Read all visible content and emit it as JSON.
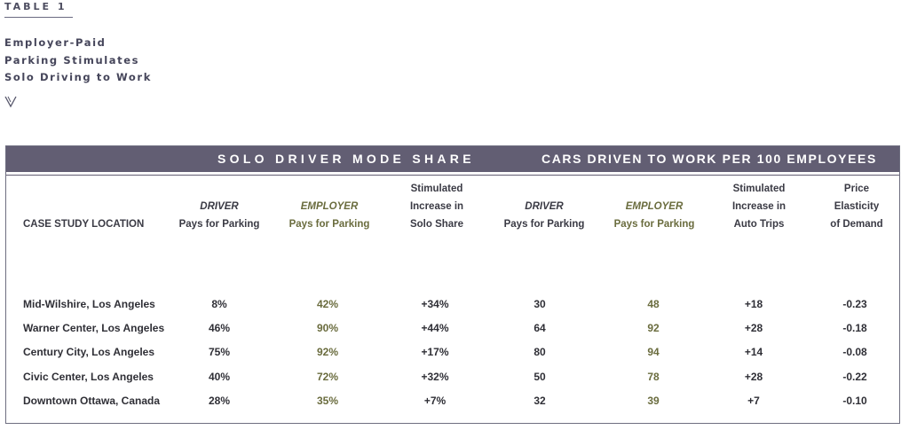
{
  "table_label": "TABLE 1",
  "subtitle": [
    "Employer-Paid",
    "Parking Stimulates",
    "Solo Driving to Work"
  ],
  "icons": {
    "arrow": "chevron-down-arrow-icon"
  },
  "colors": {
    "band": "#625e73",
    "employer_text": "#6a6c3e",
    "text": "#2f2f36"
  },
  "group_headers": {
    "solo": "SOLO DRIVER MODE SHARE",
    "cars": "CARS DRIVEN TO WORK PER 100 EMPLOYEES"
  },
  "columns": {
    "location": "CASE STUDY LOCATION",
    "solo_driver": {
      "em": "DRIVER",
      "rest": "Pays for Parking"
    },
    "solo_employer": {
      "em": "EMPLOYER",
      "rest": "Pays for Parking"
    },
    "solo_stimulated": [
      "Stimulated",
      "Increase in",
      "Solo Share"
    ],
    "cars_driver": {
      "em": "DRIVER",
      "rest": "Pays for Parking"
    },
    "cars_employer": {
      "em": "EMPLOYER",
      "rest": "Pays for Parking"
    },
    "cars_stimulated": [
      "Stimulated",
      "Increase in",
      "Auto Trips"
    ],
    "elasticity": [
      "Price",
      "Elasticity",
      "of Demand"
    ]
  },
  "rows": [
    {
      "location": "Mid-Wilshire, Los Angeles",
      "solo_driver": "8%",
      "solo_employer": "42%",
      "solo_increase": "+34%",
      "cars_driver": "30",
      "cars_employer": "48",
      "cars_increase": "+18",
      "elasticity": "-0.23"
    },
    {
      "location": "Warner Center, Los Angeles",
      "solo_driver": "46%",
      "solo_employer": "90%",
      "solo_increase": "+44%",
      "cars_driver": "64",
      "cars_employer": "92",
      "cars_increase": "+28",
      "elasticity": "-0.18"
    },
    {
      "location": "Century City, Los Angeles",
      "solo_driver": "75%",
      "solo_employer": "92%",
      "solo_increase": "+17%",
      "cars_driver": "80",
      "cars_employer": "94",
      "cars_increase": "+14",
      "elasticity": "-0.08"
    },
    {
      "location": "Civic Center, Los Angeles",
      "solo_driver": "40%",
      "solo_employer": "72%",
      "solo_increase": "+32%",
      "cars_driver": "50",
      "cars_employer": "78",
      "cars_increase": "+28",
      "elasticity": "-0.22"
    },
    {
      "location": "Downtown Ottawa, Canada",
      "solo_driver": "28%",
      "solo_employer": "35%",
      "solo_increase": "+7%",
      "cars_driver": "32",
      "cars_employer": "39",
      "cars_increase": "+7",
      "elasticity": "-0.10"
    }
  ]
}
